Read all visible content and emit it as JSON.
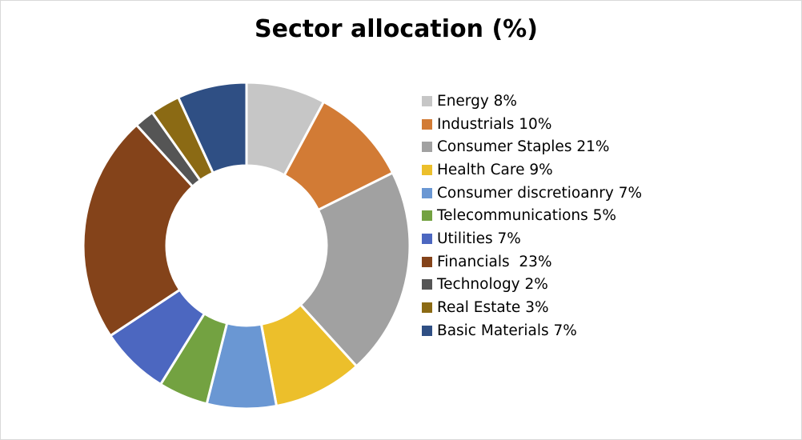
{
  "chart_data": {
    "type": "pie",
    "title": "Sector allocation (%)",
    "donut": true,
    "legend_position": "right",
    "slices": [
      {
        "label": "Energy 8%",
        "value": 8,
        "color": "#c6c6c6"
      },
      {
        "label": "Industrials 10%",
        "value": 10,
        "color": "#d27b35"
      },
      {
        "label": "Consumer Staples 21%",
        "value": 21,
        "color": "#a1a1a1"
      },
      {
        "label": "Health Care 9%",
        "value": 9,
        "color": "#ecbf2b"
      },
      {
        "label": "Consumer discretioanry 7%",
        "value": 7,
        "color": "#6a97d3"
      },
      {
        "label": "Telecommunications 5%",
        "value": 5,
        "color": "#73a241"
      },
      {
        "label": "Utilities 7%",
        "value": 7,
        "color": "#4c67c0"
      },
      {
        "label": "Financials  23%",
        "value": 23,
        "color": "#84431a"
      },
      {
        "label": "Technology 2%",
        "value": 2,
        "color": "#555555"
      },
      {
        "label": "Real Estate 3%",
        "value": 3,
        "color": "#8b6a14"
      },
      {
        "label": "Basic Materials 7%",
        "value": 7,
        "color": "#2f4f84"
      }
    ]
  }
}
